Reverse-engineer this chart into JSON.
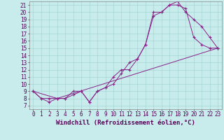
{
  "xlabel": "Windchill (Refroidissement éolien,°C)",
  "bg_color": "#c8ecec",
  "line_color": "#882288",
  "grid_color": "#a0d0d0",
  "xlim": [
    -0.5,
    23.5
  ],
  "ylim": [
    6.5,
    21.5
  ],
  "xticks": [
    0,
    1,
    2,
    3,
    4,
    5,
    6,
    7,
    8,
    9,
    10,
    11,
    12,
    13,
    14,
    15,
    16,
    17,
    18,
    19,
    20,
    21,
    22,
    23
  ],
  "yticks": [
    7,
    8,
    9,
    10,
    11,
    12,
    13,
    14,
    15,
    16,
    17,
    18,
    19,
    20,
    21
  ],
  "line1_x": [
    0,
    1,
    2,
    3,
    4,
    5,
    6,
    7,
    8,
    9,
    10,
    11,
    12,
    13,
    14,
    15,
    16,
    17,
    18,
    19,
    20,
    21,
    22,
    23
  ],
  "line1_y": [
    9,
    8,
    7.5,
    8,
    8,
    8.5,
    9,
    7.5,
    9,
    9.5,
    11,
    12,
    12,
    13.5,
    15.5,
    19.5,
    20,
    21,
    21,
    20.5,
    16.5,
    15.5,
    15,
    15
  ],
  "line2_x": [
    0,
    1,
    2,
    3,
    4,
    5,
    6,
    7,
    8,
    9,
    10,
    11,
    12,
    13,
    14,
    15,
    16,
    17,
    18,
    19,
    20,
    21,
    22,
    23
  ],
  "line2_y": [
    9,
    8,
    8,
    8,
    8,
    9,
    9,
    7.5,
    9,
    9.5,
    10,
    11.5,
    13,
    13.5,
    15.5,
    20,
    20,
    21,
    21.5,
    20,
    19,
    18,
    16.5,
    15
  ],
  "line3_x": [
    0,
    3,
    23
  ],
  "line3_y": [
    9,
    8,
    15
  ],
  "tick_font_size": 5.5,
  "xlabel_font_size": 6.5
}
